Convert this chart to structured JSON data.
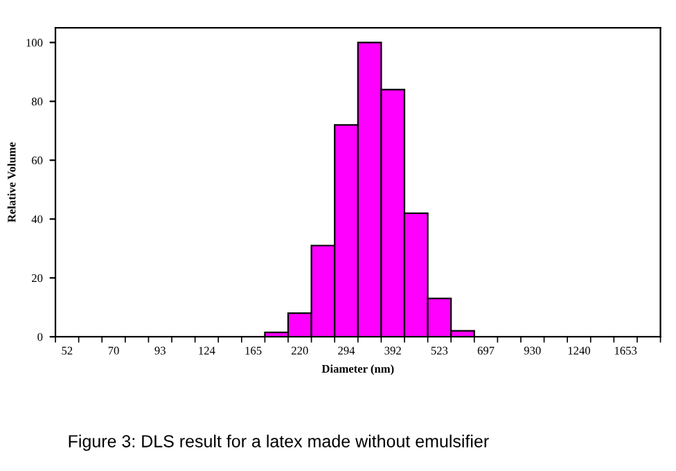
{
  "chart_data": {
    "type": "bar",
    "xlabel": "Diameter (nm)",
    "ylabel": "Relative Volume",
    "categories": [
      "52",
      null,
      "70",
      null,
      "93",
      null,
      "124",
      null,
      "165",
      null,
      "220",
      null,
      "294",
      null,
      "392",
      null,
      "523",
      null,
      "697",
      null,
      "930",
      null,
      "1240",
      null,
      "1653",
      null
    ],
    "values": [
      0,
      0,
      0,
      0,
      0,
      0,
      0,
      0,
      0,
      1.5,
      8,
      31,
      72,
      100,
      84,
      42,
      13,
      2,
      0,
      0,
      0,
      0,
      0,
      0,
      0,
      0
    ],
    "color": "#ff00ff",
    "ylim": [
      0,
      105
    ],
    "yticks": [
      0,
      20,
      40,
      60,
      80,
      100
    ],
    "grid": false,
    "annotations": [
      "Figure 3: DLS result for a latex made without emulsifier"
    ]
  }
}
